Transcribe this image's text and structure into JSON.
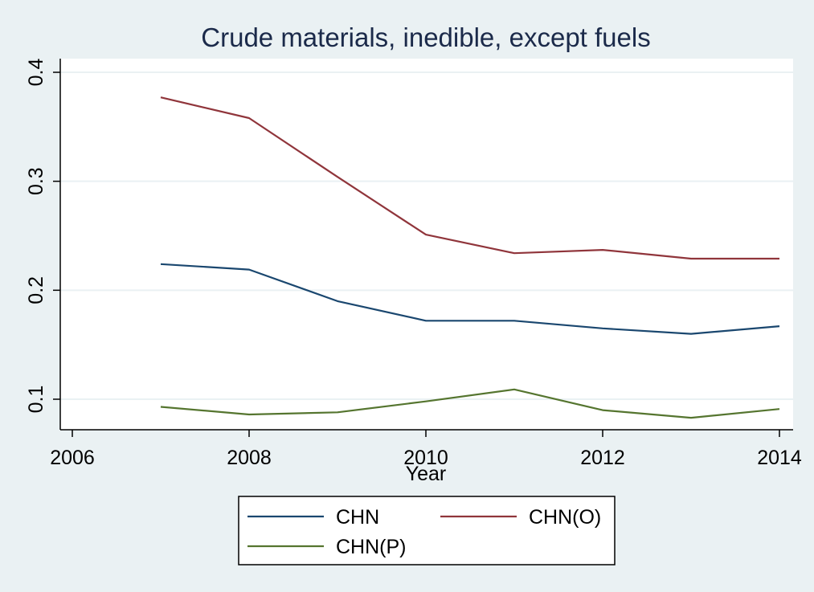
{
  "chart_data": {
    "type": "line",
    "title": "Crude materials, inedible, except fuels",
    "xlabel": "Year",
    "ylabel": "",
    "xlim": [
      2006,
      2014
    ],
    "ylim": [
      0.07,
      0.41
    ],
    "xticks": [
      2006,
      2008,
      2010,
      2012,
      2014
    ],
    "yticks": [
      0.1,
      0.2,
      0.3,
      0.4
    ],
    "xtick_labels": [
      "2006",
      "2008",
      "2010",
      "2012",
      "2014"
    ],
    "ytick_labels": [
      "0.1",
      "0.2",
      "0.3",
      "0.4"
    ],
    "grid": true,
    "legend_position": "bottom",
    "x": [
      2007,
      2008,
      2009,
      2010,
      2011,
      2012,
      2013,
      2014
    ],
    "series": [
      {
        "name": "CHN",
        "color": "#1a476f",
        "values": [
          0.224,
          0.219,
          0.19,
          0.172,
          0.172,
          0.165,
          0.16,
          0.167
        ]
      },
      {
        "name": "CHN(O)",
        "color": "#90353b",
        "values": [
          0.377,
          0.358,
          0.304,
          0.251,
          0.234,
          0.237,
          0.229,
          0.229
        ]
      },
      {
        "name": "CHN(P)",
        "color": "#55752f",
        "values": [
          0.093,
          0.086,
          0.088,
          0.098,
          0.109,
          0.09,
          0.083,
          0.091
        ]
      }
    ]
  }
}
